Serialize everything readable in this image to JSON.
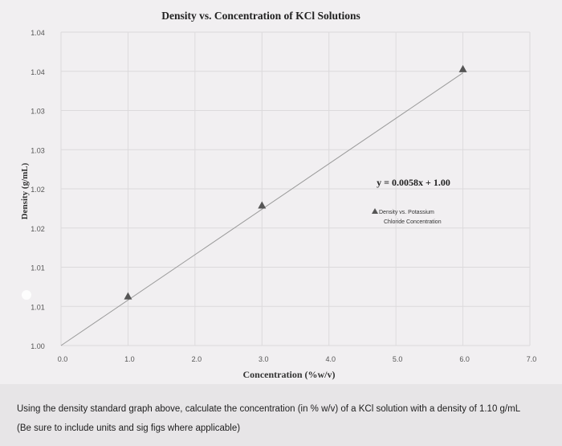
{
  "chart_data": {
    "type": "scatter",
    "title": "Density vs. Concentration of KCl Solutions",
    "xlabel": "Concentration (%w/v)",
    "ylabel": "Density (g/mL)",
    "x_ticks": [
      "0.0",
      "1.0",
      "2.0",
      "3.0",
      "4.0",
      "5.0",
      "6.0",
      "7.0"
    ],
    "y_ticks": [
      "1.00",
      "1.01",
      "1.01",
      "1.02",
      "1.02",
      "1.03",
      "1.03",
      "1.04",
      "1.04"
    ],
    "xlim": [
      0,
      7
    ],
    "ylim": [
      1.0,
      1.04
    ],
    "grid": true,
    "series": [
      {
        "name": "Density vs. Potassium Chloride Concentration",
        "marker": "triangle",
        "color": "#555555",
        "x": [
          1.0,
          3.0,
          6.0
        ],
        "y": [
          1.0063,
          1.0179,
          1.0353
        ]
      }
    ],
    "trendline": {
      "equation": "y = 0.0058x + 1.00",
      "slope": 0.0058,
      "intercept": 1.0,
      "color": "#9a9a9a"
    },
    "legend": {
      "lines": [
        "Density vs. Potassium",
        "Chloride Concentration"
      ],
      "placement": "right"
    }
  },
  "question": {
    "line1": "Using the density standard graph above, calculate the concentration (in % w/v) of a KCl solution with a density of 1.10 g/mL",
    "line2": "(Be sure to include units and sig figs where applicable)"
  }
}
